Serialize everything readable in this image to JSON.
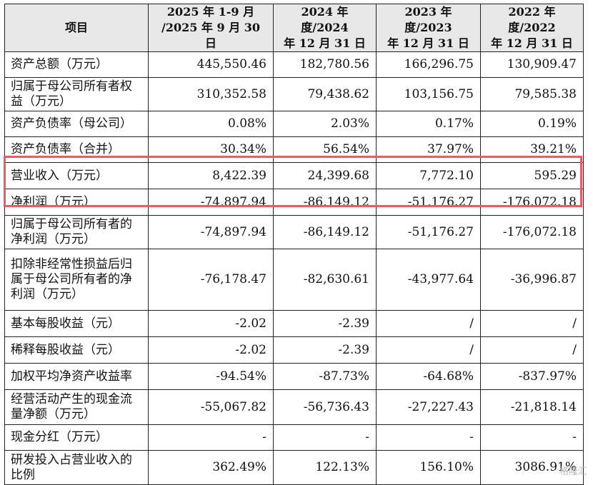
{
  "table": {
    "headers": [
      [
        "项目"
      ],
      [
        "2025 年 1-9 月",
        "/2025 年 9 月 30 日"
      ],
      [
        "2024 年度/2024",
        "年 12 月 31 日"
      ],
      [
        "2023 年度/2023",
        "年 12 月 31 日"
      ],
      [
        "2022 年度/2022",
        "年 12 月 31 日"
      ]
    ],
    "rows": [
      {
        "label": [
          "资产总额（万元）"
        ],
        "values": [
          "445,550.46",
          "182,780.56",
          "166,296.75",
          "130,909.47"
        ]
      },
      {
        "label": [
          "归属于母公司所有者权",
          "益（万元）"
        ],
        "values": [
          "310,352.58",
          "79,438.62",
          "103,156.75",
          "79,585.38"
        ]
      },
      {
        "label": [
          "资产负债率（母公司）"
        ],
        "values": [
          "0.08%",
          "2.03%",
          "0.17%",
          "0.19%"
        ]
      },
      {
        "label": [
          "资产负债率（合并）"
        ],
        "values": [
          "30.34%",
          "56.54%",
          "37.97%",
          "39.21%"
        ]
      },
      {
        "label": [
          "营业收入（万元）"
        ],
        "values": [
          "8,422.39",
          "24,399.68",
          "7,772.10",
          "595.29"
        ]
      },
      {
        "label": [
          "净利润（万元）"
        ],
        "values": [
          "-74,897.94",
          "-86,149.12",
          "-51,176.27",
          "-176,072.18"
        ]
      },
      {
        "label": [
          "归属于母公司所有者的",
          "净利润（万元）"
        ],
        "values": [
          "-74,897.94",
          "-86,149.12",
          "-51,176.27",
          "-176,072.18"
        ]
      },
      {
        "label": [
          "扣除非经常性损益后归",
          "属于母公司所有者的净",
          "利润（万元）"
        ],
        "values": [
          "-76,178.47",
          "-82,630.61",
          "-43,977.64",
          "-36,996.87"
        ]
      },
      {
        "label": [
          "基本每股收益（元）"
        ],
        "values": [
          "-2.02",
          "-2.39",
          "/",
          "/"
        ]
      },
      {
        "label": [
          "稀释每股收益（元）"
        ],
        "values": [
          "-2.02",
          "-2.39",
          "/",
          "/"
        ]
      },
      {
        "label": [
          "加权平均净资产收益率"
        ],
        "values": [
          "-94.54%",
          "-87.73%",
          "-64.68%",
          "-837.97%"
        ]
      },
      {
        "label": [
          "经营活动产生的现金流",
          "量净额（万元）"
        ],
        "values": [
          "-55,067.82",
          "-56,736.43",
          "-27,227.43",
          "-21,818.14"
        ]
      },
      {
        "label": [
          "现金分红（万元）"
        ],
        "values": [
          "-",
          "-",
          "-",
          "-"
        ]
      },
      {
        "label": [
          "研发投入占营业收入的",
          "比例"
        ],
        "values": [
          "362.49%",
          "122.13%",
          "156.10%",
          "3086.91%"
        ]
      }
    ],
    "highlight_color": "#ef5a63"
  },
  "watermark": "格隆汇"
}
